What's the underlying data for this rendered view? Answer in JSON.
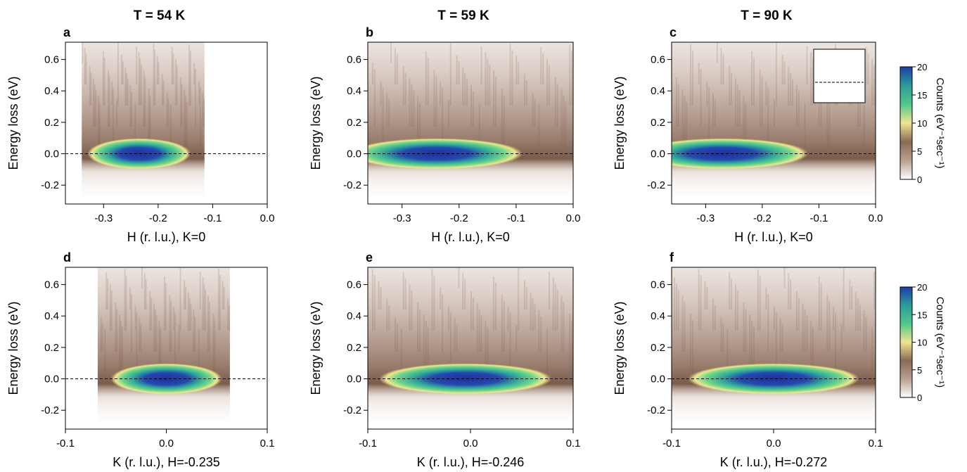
{
  "chart_data": [
    {
      "type": "heatmap",
      "panel": "a",
      "title": "T = 54 K",
      "xlabel": "H (r. l.u.), K=0",
      "ylabel": "Energy loss (eV)",
      "xlim": [
        -0.37,
        0
      ],
      "xticks": [
        -0.3,
        -0.2,
        -0.1,
        {
          "value": 0,
          "label": "0.0"
        }
      ],
      "ylim": [
        -0.32,
        0.71
      ],
      "yticks": [
        -0.2,
        {
          "value": 0,
          "label": "0.0"
        },
        0.2,
        0.4,
        0.6
      ],
      "coverage": [
        -0.34,
        -0.115
      ],
      "peak_x": -0.235
    },
    {
      "type": "heatmap",
      "panel": "b",
      "title": "T = 59 K",
      "xlabel": "H (r. l.u.), K=0",
      "ylabel": "Energy loss (eV)",
      "xlim": [
        -0.36,
        0
      ],
      "xticks": [
        -0.3,
        -0.2,
        -0.1,
        {
          "value": 0,
          "label": "0.0"
        }
      ],
      "ylim": [
        -0.32,
        0.71
      ],
      "yticks": [
        -0.2,
        {
          "value": 0,
          "label": "0.0"
        },
        0.2,
        0.4,
        0.6
      ],
      "coverage": [
        -0.36,
        0
      ],
      "peak_x": -0.24
    },
    {
      "type": "heatmap",
      "panel": "c",
      "title": "T = 90 K",
      "xlabel": "H (r. l.u.), K=0",
      "ylabel": "Energy loss (eV)",
      "xlim": [
        -0.36,
        0
      ],
      "xticks": [
        -0.3,
        -0.2,
        -0.1,
        {
          "value": 0,
          "label": "0.0"
        }
      ],
      "ylim": [
        -0.32,
        0.71
      ],
      "yticks": [
        -0.2,
        {
          "value": 0,
          "label": "0.0"
        },
        0.2,
        0.4,
        0.6
      ],
      "coverage": [
        -0.36,
        0
      ],
      "peak_x": -0.27
    },
    {
      "type": "heatmap",
      "panel": "d",
      "xlabel": "K (r. l.u.), H=-0.235",
      "ylabel": "Energy loss (eV)",
      "xlim": [
        -0.1,
        0.1
      ],
      "xticks": [
        -0.1,
        {
          "value": 0,
          "label": "0.0"
        },
        0.1
      ],
      "ylim": [
        -0.32,
        0.71
      ],
      "yticks": [
        -0.2,
        {
          "value": 0,
          "label": "0.0"
        },
        0.2,
        0.4,
        0.6
      ],
      "coverage": [
        -0.068,
        0.063
      ],
      "peak_x": 0.0
    },
    {
      "type": "heatmap",
      "panel": "e",
      "xlabel": "K (r. l.u.), H=-0.246",
      "ylabel": "Energy loss (eV)",
      "xlim": [
        -0.1,
        0.1
      ],
      "xticks": [
        -0.1,
        {
          "value": 0,
          "label": "0.0"
        },
        0.1
      ],
      "ylim": [
        -0.32,
        0.71
      ],
      "yticks": [
        -0.2,
        {
          "value": 0,
          "label": "0.0"
        },
        0.2,
        0.4,
        0.6
      ],
      "coverage": [
        -0.1,
        0.1
      ],
      "peak_x": -0.005
    },
    {
      "type": "heatmap",
      "panel": "f",
      "xlabel": "K (r. l.u.), H=-0.272",
      "ylabel": "Energy loss (eV)",
      "xlim": [
        -0.1,
        0.1
      ],
      "xticks": [
        -0.1,
        {
          "value": 0,
          "label": "0.0"
        },
        0.1
      ],
      "ylim": [
        -0.32,
        0.71
      ],
      "yticks": [
        -0.2,
        {
          "value": 0,
          "label": "0.0"
        },
        0.2,
        0.4,
        0.6
      ],
      "coverage": [
        -0.1,
        0.1
      ],
      "peak_x": 0.0
    },
    {
      "type": "colorbar",
      "label": "Counts (eV⁻¹sec⁻¹)",
      "ylim": [
        0,
        20
      ],
      "yticks": [
        0,
        5,
        10,
        15,
        20
      ],
      "colors": [
        "#ffffff",
        "#b9a08f",
        "#8a6a55",
        "#f0e68c",
        "#4fc98a",
        "#2a9c9c",
        "#1d3fa8"
      ]
    },
    {
      "type": "colorbar",
      "label": "Counts (eV⁻¹sec⁻¹)",
      "ylim": [
        0,
        20
      ],
      "yticks": [
        0,
        5,
        10,
        15,
        20
      ],
      "colors": [
        "#ffffff",
        "#b9a08f",
        "#8a6a55",
        "#f0e68c",
        "#4fc98a",
        "#2a9c9c",
        "#1d3fa8"
      ]
    }
  ]
}
